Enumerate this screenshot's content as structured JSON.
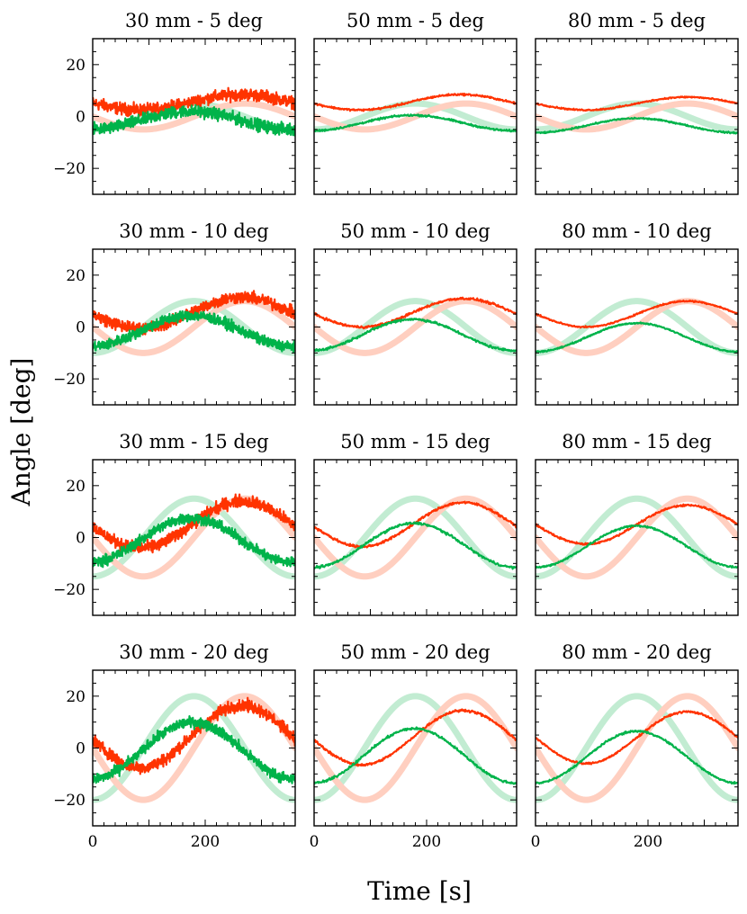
{
  "chart_data": {
    "type": "line",
    "xlabel": "Time [s]",
    "ylabel": "Angle [deg]",
    "xlim": [
      0,
      360
    ],
    "ylim": [
      -30,
      30
    ],
    "xticks": [
      0,
      200
    ],
    "yticks": [
      -20,
      0,
      20
    ],
    "series_styles": {
      "red_measured": "#ff3300",
      "green_measured": "#00b34a",
      "red_reference": "#ffcfc0",
      "green_reference": "#c2ecd2"
    },
    "panels": [
      {
        "title": "30 mm - 5 deg",
        "amp": 5,
        "red": {
          "offset": 5.5,
          "amp": 3.0,
          "phase": 265,
          "noise": 2.5
        },
        "green": {
          "offset": -1.5,
          "amp": 3.5,
          "phase": 175,
          "noise": 2.5
        }
      },
      {
        "title": "50 mm - 5 deg",
        "amp": 5,
        "red": {
          "offset": 5.5,
          "amp": 3.0,
          "phase": 260,
          "noise": 0.4
        },
        "green": {
          "offset": -2.5,
          "amp": 3.0,
          "phase": 175,
          "noise": 0.4
        }
      },
      {
        "title": "80 mm - 5 deg",
        "amp": 5,
        "red": {
          "offset": 5.0,
          "amp": 2.5,
          "phase": 270,
          "noise": 0.3
        },
        "green": {
          "offset": -3.5,
          "amp": 2.8,
          "phase": 180,
          "noise": 0.3
        }
      },
      {
        "title": "30 mm - 10 deg",
        "amp": 10,
        "red": {
          "offset": 5.5,
          "amp": 6.0,
          "phase": 265,
          "noise": 2.5
        },
        "green": {
          "offset": -1.5,
          "amp": 6.0,
          "phase": 175,
          "noise": 2.2
        }
      },
      {
        "title": "50 mm - 10 deg",
        "amp": 10,
        "red": {
          "offset": 5.5,
          "amp": 5.5,
          "phase": 265,
          "noise": 0.5
        },
        "green": {
          "offset": -3.0,
          "amp": 6.0,
          "phase": 175,
          "noise": 0.5
        }
      },
      {
        "title": "80 mm - 10 deg",
        "amp": 10,
        "red": {
          "offset": 5.0,
          "amp": 5.0,
          "phase": 270,
          "noise": 0.3
        },
        "green": {
          "offset": -4.0,
          "amp": 5.5,
          "phase": 180,
          "noise": 0.3
        }
      },
      {
        "title": "30 mm - 15 deg",
        "amp": 15,
        "red": {
          "offset": 5.0,
          "amp": 9.0,
          "phase": 265,
          "noise": 2.5
        },
        "green": {
          "offset": -1.0,
          "amp": 8.5,
          "phase": 175,
          "noise": 2.2
        }
      },
      {
        "title": "50 mm - 15 deg",
        "amp": 15,
        "red": {
          "offset": 5.0,
          "amp": 8.5,
          "phase": 265,
          "noise": 0.5
        },
        "green": {
          "offset": -3.0,
          "amp": 8.5,
          "phase": 178,
          "noise": 0.5
        }
      },
      {
        "title": "80 mm - 15 deg",
        "amp": 15,
        "red": {
          "offset": 5.0,
          "amp": 7.5,
          "phase": 270,
          "noise": 0.4
        },
        "green": {
          "offset": -3.5,
          "amp": 8.0,
          "phase": 180,
          "noise": 0.4
        }
      },
      {
        "title": "30 mm - 20 deg",
        "amp": 20,
        "red": {
          "offset": 4.5,
          "amp": 12.0,
          "phase": 265,
          "noise": 2.5
        },
        "green": {
          "offset": -1.0,
          "amp": 11.0,
          "phase": 178,
          "noise": 2.2
        }
      },
      {
        "title": "50 mm - 20 deg",
        "amp": 20,
        "red": {
          "offset": 4.0,
          "amp": 10.5,
          "phase": 265,
          "noise": 0.5
        },
        "green": {
          "offset": -3.0,
          "amp": 10.5,
          "phase": 178,
          "noise": 0.5
        }
      },
      {
        "title": "80 mm - 20 deg",
        "amp": 20,
        "red": {
          "offset": 4.0,
          "amp": 10.0,
          "phase": 270,
          "noise": 0.4
        },
        "green": {
          "offset": -3.5,
          "amp": 10.0,
          "phase": 180,
          "noise": 0.4
        }
      }
    ]
  }
}
